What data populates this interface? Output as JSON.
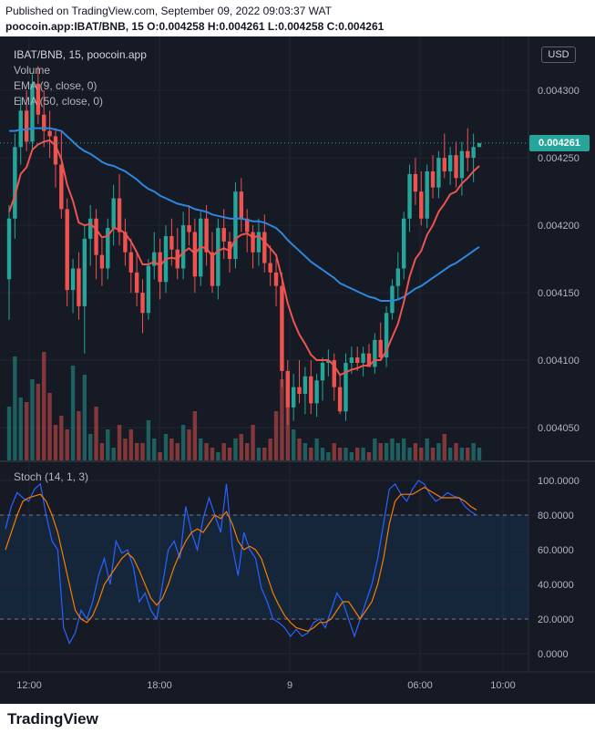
{
  "header": {
    "published": "Published on TradingView.com, September 09, 2022 09:03:37 WAT",
    "ohlc": "poocoin.app:IBAT/BNB, 15  O:0.004258 H:0.004261 L:0.004258 C:0.004261"
  },
  "legend": {
    "symbol": "IBAT/BNB, 15, poocoin.app",
    "volume": "Volume",
    "ema9": "EMA (9, close, 0)",
    "ema50": "EMA (50, close, 0)"
  },
  "currency": "USD",
  "last_price": "0.004261",
  "stoch_label": "Stoch (14, 1, 3)",
  "footer": {
    "logo": "TradingView"
  },
  "chart_data": [
    {
      "type": "candlestick",
      "pair": "IBAT/BNB",
      "interval": "15",
      "ylim": [
        0.004025,
        0.00434
      ],
      "price_ticks": [
        "0.004300",
        "0.004250",
        "0.004200",
        "0.004150",
        "0.004100",
        "0.004050"
      ],
      "time_ticks": [
        "12:00",
        "18:00",
        "9",
        "06:00",
        "10:00"
      ],
      "last_price": 0.004261,
      "colors": {
        "up": "#26a69a",
        "down": "#ef5350",
        "ema9": "#ef5350",
        "ema50": "#2e86de"
      },
      "candles": [
        [
          0.00416,
          0.004215,
          0.00413,
          0.004205
        ],
        [
          0.004205,
          0.004268,
          0.00419,
          0.004258
        ],
        [
          0.004258,
          0.004295,
          0.004245,
          0.004285
        ],
        [
          0.004285,
          0.0043,
          0.004255,
          0.004262
        ],
        [
          0.004262,
          0.004312,
          0.004255,
          0.004305
        ],
        [
          0.004305,
          0.004318,
          0.004275,
          0.004282
        ],
        [
          0.004282,
          0.0043,
          0.004258,
          0.00427
        ],
        [
          0.00427,
          0.004285,
          0.00425,
          0.004266
        ],
        [
          0.004266,
          0.004272,
          0.004228,
          0.004245
        ],
        [
          0.004245,
          0.00427,
          0.004205,
          0.004212
        ],
        [
          0.004212,
          0.00422,
          0.00414,
          0.004152
        ],
        [
          0.004152,
          0.004175,
          0.004135,
          0.004168
        ],
        [
          0.004168,
          0.00418,
          0.00413,
          0.00414
        ],
        [
          0.00414,
          0.0042,
          0.004105,
          0.00419
        ],
        [
          0.00419,
          0.004215,
          0.00417,
          0.004205
        ],
        [
          0.004205,
          0.004212,
          0.00416,
          0.004178
        ],
        [
          0.004178,
          0.00419,
          0.004155,
          0.004168
        ],
        [
          0.004168,
          0.004205,
          0.00416,
          0.004198
        ],
        [
          0.004198,
          0.00423,
          0.004185,
          0.00422
        ],
        [
          0.00422,
          0.004238,
          0.004185,
          0.004195
        ],
        [
          0.004195,
          0.004205,
          0.00417,
          0.00418
        ],
        [
          0.00418,
          0.00419,
          0.00415,
          0.004165
        ],
        [
          0.004165,
          0.00418,
          0.00414,
          0.00415
        ],
        [
          0.00415,
          0.00416,
          0.00412,
          0.004135
        ],
        [
          0.004135,
          0.004175,
          0.00413,
          0.00417
        ],
        [
          0.00417,
          0.004195,
          0.00416,
          0.00418
        ],
        [
          0.00418,
          0.00419,
          0.004145,
          0.004158
        ],
        [
          0.004158,
          0.0042,
          0.00415,
          0.004192
        ],
        [
          0.004192,
          0.004205,
          0.00417,
          0.004182
        ],
        [
          0.004182,
          0.004198,
          0.00416,
          0.004168
        ],
        [
          0.004168,
          0.00421,
          0.00416,
          0.0042
        ],
        [
          0.0042,
          0.004215,
          0.004185,
          0.004195
        ],
        [
          0.004195,
          0.004205,
          0.00415,
          0.004162
        ],
        [
          0.004162,
          0.00421,
          0.004155,
          0.004205
        ],
        [
          0.004205,
          0.004215,
          0.00417,
          0.00418
        ],
        [
          0.00418,
          0.004195,
          0.00415,
          0.004155
        ],
        [
          0.004155,
          0.004205,
          0.004145,
          0.004198
        ],
        [
          0.004198,
          0.004212,
          0.004175,
          0.004188
        ],
        [
          0.004188,
          0.004195,
          0.004165,
          0.004175
        ],
        [
          0.004175,
          0.004232,
          0.004168,
          0.004225
        ],
        [
          0.004225,
          0.004235,
          0.004195,
          0.004205
        ],
        [
          0.004205,
          0.004212,
          0.00418,
          0.004195
        ],
        [
          0.004195,
          0.0042,
          0.004168,
          0.00418
        ],
        [
          0.00418,
          0.004205,
          0.00417,
          0.004195
        ],
        [
          0.004195,
          0.004208,
          0.004165,
          0.004172
        ],
        [
          0.004172,
          0.004185,
          0.004155,
          0.004165
        ],
        [
          0.004165,
          0.004175,
          0.00414,
          0.004155
        ],
        [
          0.004155,
          0.004165,
          0.00408,
          0.004092
        ],
        [
          0.004092,
          0.0041,
          0.004052,
          0.004065
        ],
        [
          0.004065,
          0.00409,
          0.004055,
          0.00408
        ],
        [
          0.00408,
          0.0041,
          0.004068,
          0.004075
        ],
        [
          0.004075,
          0.004095,
          0.00406,
          0.004088
        ],
        [
          0.004088,
          0.0041,
          0.00406,
          0.004068
        ],
        [
          0.004068,
          0.00409,
          0.004058,
          0.004085
        ],
        [
          0.004085,
          0.004102,
          0.00407,
          0.004098
        ],
        [
          0.004098,
          0.004108,
          0.004088,
          0.0041
        ],
        [
          0.0041,
          0.004105,
          0.00407,
          0.00408
        ],
        [
          0.00408,
          0.00409,
          0.00406,
          0.004062
        ],
        [
          0.004062,
          0.004105,
          0.004055,
          0.004098
        ],
        [
          0.004098,
          0.00411,
          0.00409,
          0.004102
        ],
        [
          0.004102,
          0.00411,
          0.004092,
          0.004098
        ],
        [
          0.004098,
          0.00411,
          0.004088,
          0.004105
        ],
        [
          0.004105,
          0.004112,
          0.004095,
          0.004095
        ],
        [
          0.004095,
          0.00412,
          0.00409,
          0.004115
        ],
        [
          0.004115,
          0.004128,
          0.0041,
          0.004102
        ],
        [
          0.004102,
          0.00414,
          0.004095,
          0.004135
        ],
        [
          0.004135,
          0.00416,
          0.00413,
          0.004155
        ],
        [
          0.004155,
          0.00418,
          0.004145,
          0.004168
        ],
        [
          0.004168,
          0.00421,
          0.00416,
          0.004205
        ],
        [
          0.004205,
          0.004245,
          0.004195,
          0.004238
        ],
        [
          0.004238,
          0.00425,
          0.004215,
          0.004225
        ],
        [
          0.004225,
          0.00424,
          0.0042,
          0.004205
        ],
        [
          0.004205,
          0.004245,
          0.004198,
          0.00424
        ],
        [
          0.00424,
          0.004252,
          0.00422,
          0.004228
        ],
        [
          0.004228,
          0.004255,
          0.00422,
          0.00425
        ],
        [
          0.00425,
          0.004268,
          0.004235,
          0.00424
        ],
        [
          0.00424,
          0.004258,
          0.00423,
          0.004252
        ],
        [
          0.004252,
          0.004262,
          0.004228,
          0.004235
        ],
        [
          0.004235,
          0.004262,
          0.004222,
          0.004255
        ],
        [
          0.004255,
          0.004272,
          0.00424,
          0.00425
        ],
        [
          0.00425,
          0.004268,
          0.004232,
          0.004258
        ],
        [
          0.004258,
          0.004261,
          0.004258,
          0.004261
        ]
      ],
      "ema9": [
        0.00421,
        0.004222,
        0.004238,
        0.004243,
        0.004256,
        0.00426,
        0.004262,
        0.004263,
        0.004259,
        0.004249,
        0.00423,
        0.004218,
        0.004202,
        0.0042,
        0.004201,
        0.004197,
        0.004191,
        0.004192,
        0.004198,
        0.004197,
        0.004194,
        0.004188,
        0.00418,
        0.004171,
        0.004171,
        0.004173,
        0.00417,
        0.004175,
        0.004176,
        0.004175,
        0.00418,
        0.004183,
        0.004179,
        0.004184,
        0.004183,
        0.004177,
        0.004181,
        0.004183,
        0.004181,
        0.00419,
        0.004193,
        0.004194,
        0.004191,
        0.004192,
        0.004188,
        0.004183,
        0.004178,
        0.004161,
        0.004142,
        0.004129,
        0.004119,
        0.004112,
        0.004104,
        0.0041,
        0.0041,
        0.0041,
        0.004096,
        0.004089,
        0.004091,
        0.004093,
        0.004094,
        0.004096,
        0.004096,
        0.0041,
        0.0041,
        0.004107,
        0.004117,
        0.004127,
        0.004143,
        0.004162,
        0.004175,
        0.004181,
        0.004193,
        0.0042,
        0.00421,
        0.004216,
        0.004223,
        0.004225,
        0.004231,
        0.004235,
        0.00424,
        0.004244
      ],
      "ema50": [
        0.00427,
        0.00427,
        0.004271,
        0.004271,
        0.004272,
        0.004272,
        0.004272,
        0.004272,
        0.004271,
        0.00427,
        0.004266,
        0.004262,
        0.004258,
        0.004255,
        0.004253,
        0.00425,
        0.004247,
        0.004245,
        0.004244,
        0.004242,
        0.00424,
        0.004237,
        0.004234,
        0.00423,
        0.004227,
        0.004225,
        0.004222,
        0.00422,
        0.004218,
        0.004216,
        0.004215,
        0.004214,
        0.004212,
        0.004211,
        0.00421,
        0.004208,
        0.004207,
        0.004206,
        0.004205,
        0.004205,
        0.004205,
        0.004204,
        0.004203,
        0.004203,
        0.004202,
        0.0042,
        0.004198,
        0.004194,
        0.004189,
        0.004185,
        0.004181,
        0.004177,
        0.004173,
        0.00417,
        0.004167,
        0.004164,
        0.004161,
        0.004157,
        0.004155,
        0.004153,
        0.004151,
        0.004149,
        0.004147,
        0.004146,
        0.004144,
        0.004144,
        0.004144,
        0.004145,
        0.004147,
        0.00415,
        0.004153,
        0.004155,
        0.004158,
        0.004161,
        0.004164,
        0.004167,
        0.00417,
        0.004172,
        0.004175,
        0.004178,
        0.004181,
        0.004184
      ],
      "volume": [
        60,
        115,
        70,
        65,
        90,
        85,
        120,
        75,
        40,
        50,
        35,
        105,
        55,
        95,
        30,
        60,
        20,
        35,
        15,
        40,
        25,
        35,
        20,
        20,
        45,
        25,
        10,
        30,
        25,
        20,
        40,
        35,
        55,
        25,
        20,
        15,
        10,
        20,
        15,
        25,
        30,
        20,
        40,
        15,
        15,
        25,
        55,
        90,
        60,
        35,
        25,
        20,
        15,
        25,
        15,
        10,
        20,
        15,
        15,
        10,
        15,
        15,
        10,
        25,
        20,
        20,
        25,
        20,
        25,
        15,
        20,
        15,
        25,
        15,
        20,
        30,
        15,
        20,
        15,
        15,
        20,
        15
      ]
    },
    {
      "type": "line",
      "name": "Stoch (14, 1, 3)",
      "ylim": [
        -10,
        110
      ],
      "ticks": [
        "100.0000",
        "80.0000",
        "60.0000",
        "40.0000",
        "20.0000",
        "0.0000"
      ],
      "bands": [
        20,
        80
      ],
      "series": [
        {
          "name": "%K",
          "color": "#2962ff",
          "values": [
            72,
            85,
            93,
            90,
            88,
            95,
            98,
            80,
            65,
            60,
            15,
            6,
            12,
            25,
            20,
            30,
            45,
            55,
            40,
            65,
            58,
            60,
            50,
            30,
            35,
            25,
            20,
            40,
            60,
            65,
            55,
            85,
            70,
            60,
            78,
            90,
            80,
            70,
            98,
            62,
            45,
            70,
            60,
            55,
            38,
            30,
            20,
            18,
            15,
            10,
            14,
            10,
            12,
            18,
            20,
            15,
            25,
            35,
            30,
            20,
            10,
            20,
            30,
            40,
            55,
            75,
            95,
            98,
            92,
            88,
            95,
            100,
            98,
            92,
            88,
            90,
            93,
            91,
            90,
            85,
            82,
            80
          ]
        },
        {
          "name": "%D",
          "color": "#f57c00",
          "values": [
            60,
            70,
            80,
            88,
            90,
            91,
            92,
            88,
            80,
            70,
            55,
            40,
            25,
            20,
            18,
            22,
            30,
            40,
            45,
            50,
            55,
            58,
            55,
            48,
            40,
            32,
            28,
            32,
            40,
            50,
            58,
            65,
            70,
            72,
            70,
            75,
            80,
            78,
            82,
            75,
            65,
            60,
            62,
            60,
            55,
            45,
            35,
            28,
            22,
            18,
            15,
            14,
            13,
            15,
            18,
            18,
            20,
            25,
            30,
            30,
            25,
            20,
            25,
            30,
            40,
            55,
            75,
            88,
            92,
            92,
            92,
            94,
            96,
            94,
            92,
            90,
            90,
            90,
            90,
            88,
            85,
            83
          ]
        }
      ]
    }
  ]
}
